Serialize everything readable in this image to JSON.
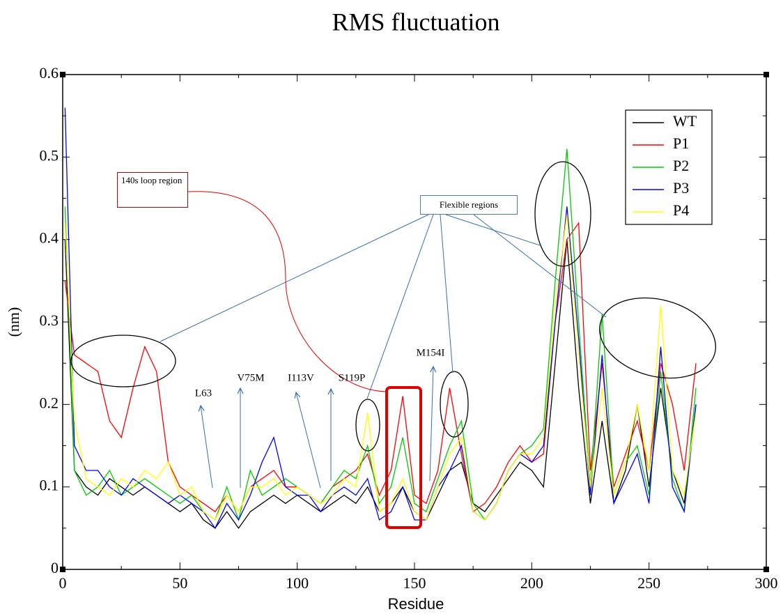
{
  "chart_data": {
    "type": "line",
    "title": "RMS fluctuation",
    "xlabel": "Residue",
    "ylabel": "(nm)",
    "x": [
      1,
      5,
      10,
      15,
      20,
      25,
      30,
      35,
      40,
      45,
      50,
      55,
      60,
      65,
      70,
      75,
      80,
      85,
      90,
      95,
      100,
      105,
      110,
      115,
      120,
      125,
      130,
      135,
      140,
      145,
      150,
      155,
      160,
      165,
      170,
      175,
      180,
      185,
      190,
      195,
      200,
      205,
      210,
      215,
      220,
      225,
      230,
      235,
      240,
      245,
      250,
      255,
      260,
      265,
      270
    ],
    "series": [
      {
        "name": "WT",
        "color": "#000000",
        "values": [
          0.4,
          0.12,
          0.1,
          0.09,
          0.11,
          0.1,
          0.09,
          0.1,
          0.09,
          0.08,
          0.07,
          0.08,
          0.06,
          0.05,
          0.07,
          0.05,
          0.07,
          0.08,
          0.09,
          0.08,
          0.09,
          0.08,
          0.07,
          0.08,
          0.09,
          0.08,
          0.1,
          0.07,
          0.08,
          0.1,
          0.07,
          0.06,
          0.09,
          0.12,
          0.13,
          0.08,
          0.07,
          0.09,
          0.11,
          0.13,
          0.12,
          0.1,
          0.25,
          0.4,
          0.22,
          0.08,
          0.18,
          0.08,
          0.12,
          0.2,
          0.1,
          0.22,
          0.12,
          0.08,
          0.2
        ]
      },
      {
        "name": "P1",
        "color": "#ff0000",
        "values": [
          0.35,
          0.26,
          0.25,
          0.24,
          0.18,
          0.16,
          0.22,
          0.27,
          0.24,
          0.13,
          0.1,
          0.09,
          0.08,
          0.07,
          0.09,
          0.07,
          0.1,
          0.11,
          0.12,
          0.1,
          0.1,
          0.09,
          0.08,
          0.1,
          0.11,
          0.12,
          0.14,
          0.09,
          0.12,
          0.21,
          0.09,
          0.08,
          0.12,
          0.22,
          0.14,
          0.07,
          0.08,
          0.1,
          0.13,
          0.15,
          0.13,
          0.14,
          0.3,
          0.4,
          0.42,
          0.12,
          0.25,
          0.1,
          0.14,
          0.18,
          0.12,
          0.25,
          0.2,
          0.12,
          0.25
        ]
      },
      {
        "name": "P2",
        "color": "#00cc00",
        "values": [
          0.44,
          0.12,
          0.09,
          0.1,
          0.12,
          0.09,
          0.1,
          0.11,
          0.1,
          0.09,
          0.08,
          0.09,
          0.07,
          0.06,
          0.1,
          0.06,
          0.12,
          0.09,
          0.1,
          0.11,
          0.1,
          0.09,
          0.08,
          0.1,
          0.12,
          0.11,
          0.15,
          0.08,
          0.1,
          0.16,
          0.08,
          0.07,
          0.11,
          0.15,
          0.18,
          0.08,
          0.06,
          0.08,
          0.12,
          0.14,
          0.15,
          0.17,
          0.35,
          0.51,
          0.3,
          0.1,
          0.31,
          0.09,
          0.13,
          0.15,
          0.09,
          0.24,
          0.11,
          0.07,
          0.22
        ]
      },
      {
        "name": "P3",
        "color": "#0000ff",
        "values": [
          0.56,
          0.15,
          0.12,
          0.12,
          0.1,
          0.09,
          0.11,
          0.1,
          0.09,
          0.08,
          0.09,
          0.08,
          0.07,
          0.05,
          0.08,
          0.06,
          0.09,
          0.13,
          0.16,
          0.1,
          0.09,
          0.09,
          0.07,
          0.09,
          0.1,
          0.09,
          0.11,
          0.06,
          0.07,
          0.1,
          0.06,
          0.06,
          0.1,
          0.12,
          0.15,
          0.07,
          0.06,
          0.08,
          0.12,
          0.14,
          0.13,
          0.15,
          0.3,
          0.44,
          0.28,
          0.09,
          0.26,
          0.08,
          0.11,
          0.14,
          0.08,
          0.27,
          0.1,
          0.07,
          0.2
        ]
      },
      {
        "name": "P4",
        "color": "#ffff00",
        "values": [
          0.42,
          0.18,
          0.11,
          0.1,
          0.09,
          0.11,
          0.1,
          0.12,
          0.11,
          0.13,
          0.09,
          0.1,
          0.07,
          0.06,
          0.09,
          0.07,
          0.1,
          0.1,
          0.11,
          0.09,
          0.1,
          0.09,
          0.08,
          0.09,
          0.11,
          0.1,
          0.19,
          0.07,
          0.08,
          0.11,
          0.07,
          0.06,
          0.1,
          0.14,
          0.16,
          0.07,
          0.06,
          0.08,
          0.12,
          0.14,
          0.14,
          0.16,
          0.32,
          0.43,
          0.26,
          0.1,
          0.22,
          0.09,
          0.13,
          0.2,
          0.12,
          0.32,
          0.12,
          0.09,
          0.19
        ]
      }
    ],
    "xlim": [
      0,
      300
    ],
    "xticks": [
      0,
      50,
      100,
      150,
      200,
      250,
      300
    ],
    "ylim": [
      0,
      0.6
    ],
    "yticks": [
      0,
      0.1,
      0.2,
      0.3,
      0.4,
      0.5,
      0.6
    ],
    "legend": "upper right",
    "annotations": [
      "140s loop region",
      "Flexible regions",
      "L63",
      "V75M",
      "I113V",
      "S119P",
      "M154I"
    ]
  }
}
